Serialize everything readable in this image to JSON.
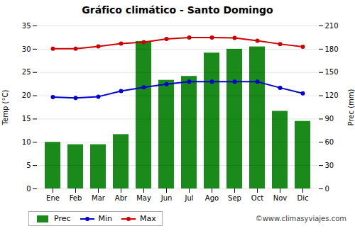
{
  "chart_data": {
    "type": "combo",
    "title": "Gráfico climático - Santo Domingo",
    "categories": [
      "Ene",
      "Feb",
      "Mar",
      "Abr",
      "May",
      "Jun",
      "Jul",
      "Ago",
      "Sep",
      "Oct",
      "Nov",
      "Dic"
    ],
    "series": [
      {
        "name": "Prec",
        "type": "bar",
        "axis": "y2",
        "color": "#1a8a1a",
        "values": [
          60,
          57,
          57,
          70,
          190,
          140,
          145,
          175,
          180,
          183,
          100,
          87
        ]
      },
      {
        "name": "Min",
        "type": "line",
        "marker": "circle",
        "color": "#0000cc",
        "values": [
          19.7,
          19.5,
          19.8,
          21.0,
          21.8,
          22.5,
          23.0,
          23.0,
          23.0,
          23.0,
          21.7,
          20.5
        ]
      },
      {
        "name": "Max",
        "type": "line",
        "marker": "circle",
        "color": "#cc0000",
        "values": [
          30.1,
          30.1,
          30.6,
          31.2,
          31.5,
          32.2,
          32.5,
          32.5,
          32.4,
          31.8,
          31.1,
          30.5
        ]
      }
    ],
    "ylabel": "Temp (°C)",
    "y2label": "Prec (mm)",
    "ylim": [
      0,
      35
    ],
    "yticks": [
      0,
      5,
      10,
      15,
      20,
      25,
      30,
      35
    ],
    "y2lim": [
      0,
      210
    ],
    "y2ticks": [
      0,
      30,
      60,
      90,
      120,
      150,
      180,
      210
    ],
    "grid": true,
    "legend": "lower left",
    "annotations": [
      "©www.climasyviajes.com"
    ]
  }
}
